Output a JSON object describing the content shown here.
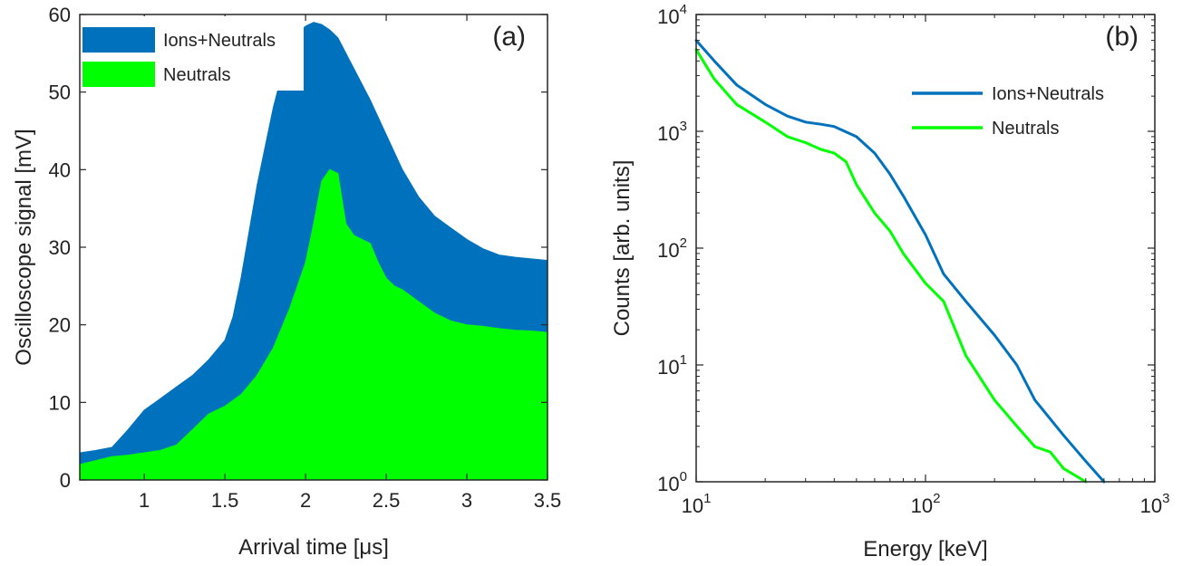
{
  "chart_data": [
    {
      "type": "area",
      "panel_label": "(a)",
      "xlabel": "Arrival time [μs]",
      "ylabel": "Oscilloscope signal [mV]",
      "xlim": [
        0.6,
        3.5
      ],
      "ylim": [
        0,
        60
      ],
      "xticks": [
        1,
        1.5,
        2,
        2.5,
        3,
        3.5
      ],
      "xtick_labels": [
        "1",
        "1.5",
        "2",
        "2.5",
        "3",
        "3.5"
      ],
      "yticks": [
        0,
        10,
        20,
        30,
        40,
        50,
        60
      ],
      "ytick_labels": [
        "0",
        "10",
        "20",
        "30",
        "40",
        "50",
        "60"
      ],
      "legend_position": "top-left",
      "series": [
        {
          "name": "Ions+Neutrals",
          "color": "#0072BD",
          "x": [
            0.6,
            0.7,
            0.8,
            0.9,
            1.0,
            1.1,
            1.2,
            1.3,
            1.4,
            1.5,
            1.55,
            1.6,
            1.65,
            1.7,
            1.75,
            1.8,
            1.85,
            1.9,
            1.95,
            2.0,
            2.05,
            2.1,
            2.15,
            2.2,
            2.25,
            2.3,
            2.4,
            2.5,
            2.6,
            2.7,
            2.8,
            2.9,
            3.0,
            3.1,
            3.2,
            3.3,
            3.4,
            3.5
          ],
          "y": [
            3.5,
            3.8,
            4.2,
            6.5,
            9.0,
            10.5,
            12.0,
            13.5,
            15.5,
            18.0,
            21.0,
            26.0,
            32.0,
            38.0,
            43.0,
            48.0,
            52.0,
            55.0,
            57.5,
            58.5,
            59.0,
            58.7,
            58.0,
            57.0,
            55.0,
            53.0,
            49.0,
            44.5,
            40.0,
            36.5,
            34.0,
            32.5,
            31.0,
            29.8,
            29.0,
            28.7,
            28.5,
            28.3
          ]
        },
        {
          "name": "Neutrals",
          "color": "#00FF00",
          "x": [
            0.6,
            0.7,
            0.8,
            0.9,
            1.0,
            1.1,
            1.2,
            1.3,
            1.4,
            1.5,
            1.6,
            1.7,
            1.8,
            1.9,
            2.0,
            2.05,
            2.1,
            2.15,
            2.2,
            2.25,
            2.3,
            2.35,
            2.4,
            2.45,
            2.5,
            2.55,
            2.6,
            2.7,
            2.8,
            2.9,
            3.0,
            3.1,
            3.2,
            3.3,
            3.4,
            3.5
          ],
          "y": [
            2.0,
            2.5,
            3.0,
            3.2,
            3.5,
            3.8,
            4.5,
            6.5,
            8.5,
            9.5,
            11.0,
            13.5,
            17.0,
            22.0,
            28.0,
            33.0,
            38.5,
            40.0,
            39.5,
            33.0,
            31.5,
            31.0,
            30.5,
            28.0,
            26.0,
            25.0,
            24.5,
            23.0,
            21.5,
            20.5,
            20.0,
            19.8,
            19.5,
            19.3,
            19.2,
            19.0
          ]
        }
      ]
    },
    {
      "type": "line",
      "panel_label": "(b)",
      "xlabel": "Energy [keV]",
      "ylabel": "Counts [arb. units]",
      "xscale": "log",
      "yscale": "log",
      "xlim": [
        10,
        1000
      ],
      "ylim": [
        1,
        10000
      ],
      "xticks": [
        10,
        100,
        1000
      ],
      "xtick_labels": [
        {
          "base": "10",
          "exp": "1"
        },
        {
          "base": "10",
          "exp": "2"
        },
        {
          "base": "10",
          "exp": "3"
        }
      ],
      "yticks": [
        1,
        10,
        100,
        1000,
        10000
      ],
      "ytick_labels": [
        {
          "base": "10",
          "exp": "0"
        },
        {
          "base": "10",
          "exp": "1"
        },
        {
          "base": "10",
          "exp": "2"
        },
        {
          "base": "10",
          "exp": "3"
        },
        {
          "base": "10",
          "exp": "4"
        }
      ],
      "legend_position": "top-right",
      "series": [
        {
          "name": "Ions+Neutrals",
          "color": "#0072BD",
          "x": [
            10,
            12,
            15,
            20,
            25,
            30,
            35,
            40,
            50,
            60,
            70,
            80,
            100,
            120,
            150,
            200,
            250,
            300,
            400,
            500,
            600
          ],
          "y": [
            6000,
            4000,
            2500,
            1700,
            1350,
            1200,
            1150,
            1100,
            900,
            650,
            430,
            280,
            130,
            60,
            35,
            18,
            10,
            5,
            2.5,
            1.5,
            1.0
          ]
        },
        {
          "name": "Neutrals",
          "color": "#00FF00",
          "x": [
            10,
            12,
            15,
            20,
            25,
            30,
            35,
            40,
            45,
            50,
            60,
            70,
            80,
            100,
            120,
            150,
            200,
            250,
            300,
            350,
            400,
            500
          ],
          "y": [
            5000,
            2800,
            1700,
            1200,
            900,
            800,
            700,
            650,
            550,
            350,
            200,
            140,
            90,
            50,
            35,
            12,
            5,
            3,
            2,
            1.8,
            1.3,
            1.0
          ]
        }
      ]
    }
  ]
}
